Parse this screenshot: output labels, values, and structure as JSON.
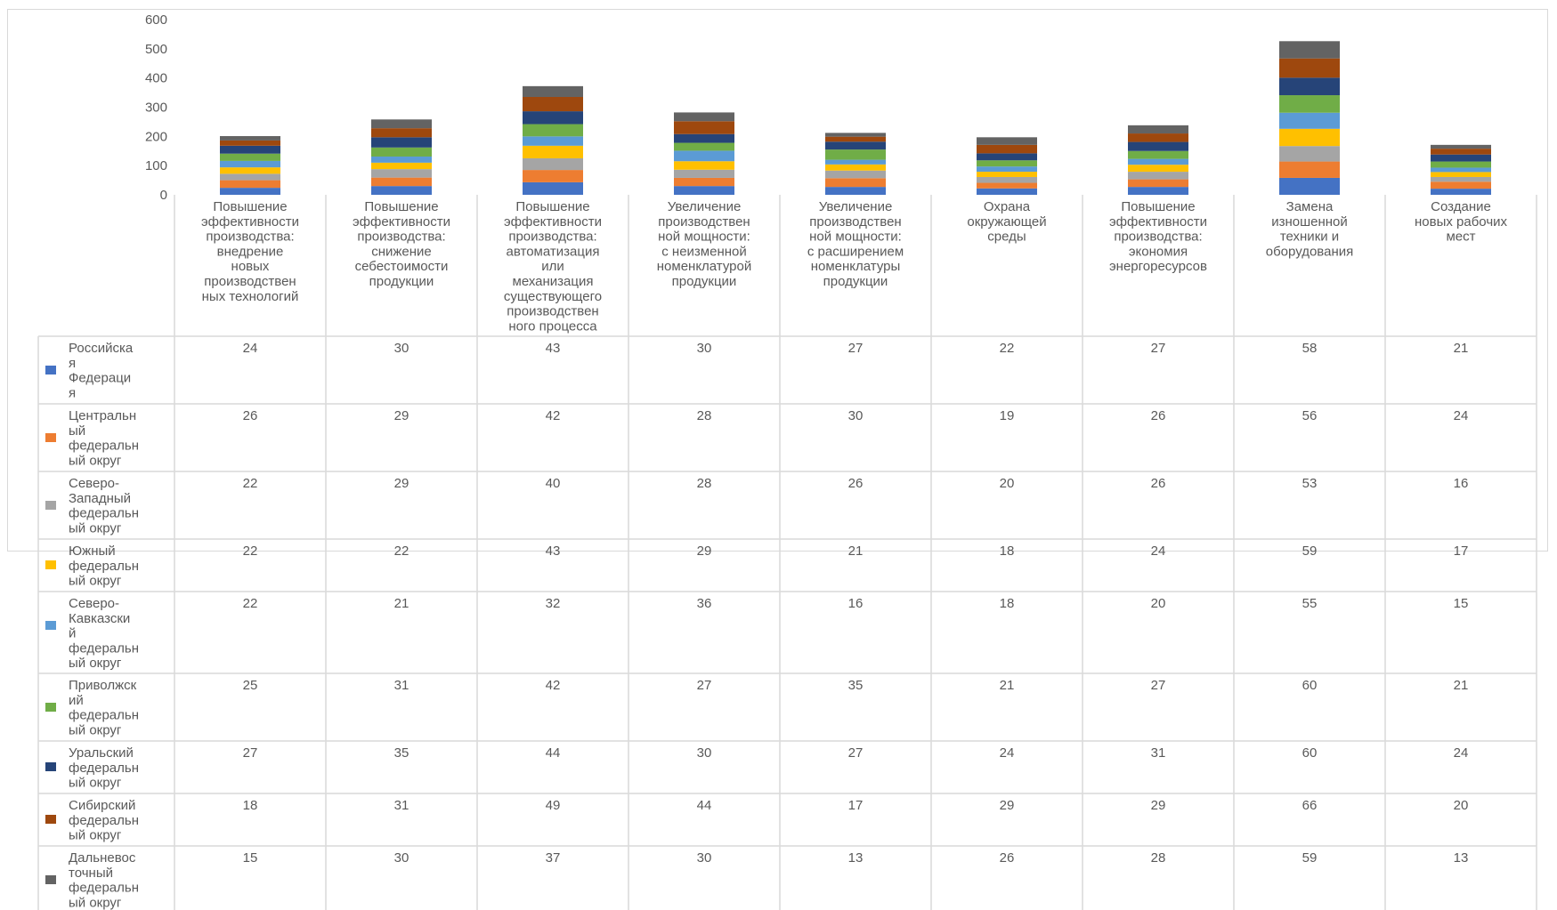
{
  "chart_data": {
    "type": "bar",
    "stacked": true,
    "ylim": [
      0,
      600
    ],
    "yticks": [
      0,
      100,
      200,
      300,
      400,
      500,
      600
    ],
    "grid": false,
    "legend": "data-table",
    "categories": [
      [
        "Повышение",
        "эффективности",
        "производства:",
        "внедрение",
        "новых",
        "производствен",
        "ных технологий"
      ],
      [
        "Повышение",
        "эффективности",
        "производства:",
        "снижение",
        "себестоимости",
        "продукции"
      ],
      [
        "Повышение",
        "эффективности",
        "производства:",
        "автоматизация",
        "или",
        "механизация",
        "существующего",
        "производствен",
        "ного процесса"
      ],
      [
        "Увеличение",
        "производствен",
        "ной мощности:",
        "с неизменной",
        "номенклатурой",
        "продукции"
      ],
      [
        "Увеличение",
        "производствен",
        "ной мощности:",
        "с расширением",
        "номенклатуры",
        "продукции"
      ],
      [
        "Охрана",
        "окружающей",
        "среды"
      ],
      [
        "Повышение",
        "эффективности",
        "производства:",
        "экономия",
        "энергоресурсов"
      ],
      [
        "Замена",
        "изношенной",
        "техники и",
        "оборудования"
      ],
      [
        "Создание",
        "новых рабочих",
        "мест"
      ]
    ],
    "series": [
      {
        "name": [
          "Российска",
          "я",
          "Федераци",
          "я"
        ],
        "color": "#4472c4",
        "values": [
          24,
          30,
          43,
          30,
          27,
          22,
          27,
          58,
          21
        ]
      },
      {
        "name": [
          "Центральн",
          "ый",
          "федеральн",
          "ый округ"
        ],
        "color": "#ed7d31",
        "values": [
          26,
          29,
          42,
          28,
          30,
          19,
          26,
          56,
          24
        ]
      },
      {
        "name": [
          "Северо-",
          "Западный",
          "федеральн",
          "ый округ"
        ],
        "color": "#a5a5a5",
        "values": [
          22,
          29,
          40,
          28,
          26,
          20,
          26,
          53,
          16
        ]
      },
      {
        "name": [
          "Южный",
          "федеральн",
          "ый округ"
        ],
        "color": "#ffc000",
        "values": [
          22,
          22,
          43,
          29,
          21,
          18,
          24,
          59,
          17
        ]
      },
      {
        "name": [
          "Северо-",
          "Кавказски",
          "й",
          "федеральн",
          "ый округ"
        ],
        "color": "#5b9bd5",
        "values": [
          22,
          21,
          32,
          36,
          16,
          18,
          20,
          55,
          15
        ]
      },
      {
        "name": [
          "Приволжск",
          "ий",
          "федеральн",
          "ый округ"
        ],
        "color": "#70ad47",
        "values": [
          25,
          31,
          42,
          27,
          35,
          21,
          27,
          60,
          21
        ]
      },
      {
        "name": [
          "Уральский",
          "федеральн",
          "ый округ"
        ],
        "color": "#264478",
        "values": [
          27,
          35,
          44,
          30,
          27,
          24,
          31,
          60,
          24
        ]
      },
      {
        "name": [
          "Сибирский",
          "федеральн",
          "ый округ"
        ],
        "color": "#9e480e",
        "values": [
          18,
          31,
          49,
          44,
          17,
          29,
          29,
          66,
          20
        ]
      },
      {
        "name": [
          "Дальневос",
          "точный",
          "федеральн",
          "ый округ"
        ],
        "color": "#636363",
        "values": [
          15,
          30,
          37,
          30,
          13,
          26,
          28,
          59,
          13
        ]
      }
    ]
  }
}
